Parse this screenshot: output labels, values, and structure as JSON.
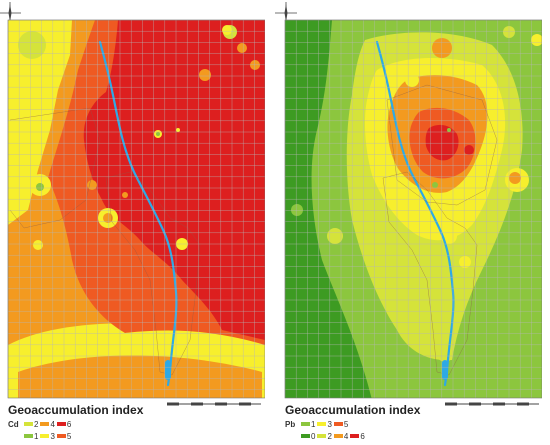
{
  "colors": {
    "0": "#3d9b22",
    "1": "#8cc63e",
    "2": "#d5e33a",
    "3": "#f7ef2d",
    "4": "#f39a1f",
    "5": "#ef5a22",
    "6": "#dd1f1f",
    "river": "#2ea9e6",
    "grid": "#b7b7b7"
  },
  "maps": [
    {
      "element": "Cd",
      "legend_title": "Geoaccumulation index",
      "legend_rows": [
        [
          {
            "value": "2",
            "cls": "2"
          },
          {
            "value": "4",
            "cls": "4"
          },
          {
            "value": "6",
            "cls": "6"
          }
        ],
        [
          {
            "value": "1",
            "cls": "1"
          },
          {
            "value": "3",
            "cls": "3"
          },
          {
            "value": "5",
            "cls": "5"
          }
        ]
      ]
    },
    {
      "element": "Pb",
      "legend_title": "Geoaccumulation index",
      "legend_rows": [
        [
          {
            "value": "1",
            "cls": "1"
          },
          {
            "value": "3",
            "cls": "3"
          },
          {
            "value": "5",
            "cls": "5"
          }
        ],
        [
          {
            "value": "0",
            "cls": "0"
          },
          {
            "value": "2",
            "cls": "2"
          },
          {
            "value": "4",
            "cls": "4"
          },
          {
            "value": "6",
            "cls": "6"
          }
        ]
      ]
    }
  ]
}
